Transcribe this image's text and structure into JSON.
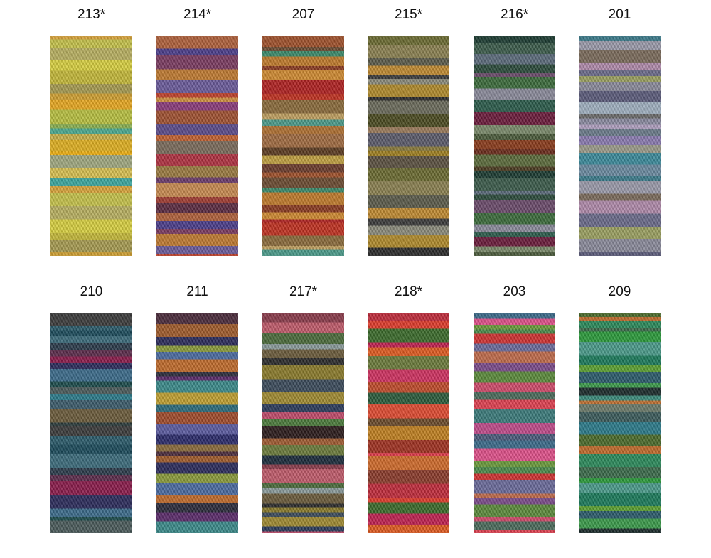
{
  "rows": [
    [
      {
        "label": "213*",
        "colors": [
          "#d9a43a",
          "#c6c24a",
          "#b8b060",
          "#d8d040",
          "#c4b838",
          "#a69a50",
          "#d0a030",
          "#e8a820",
          "#b8c040",
          "#8ab050",
          "#4aaa90",
          "#c8b048",
          "#e0b020",
          "#f0b010",
          "#a0a880",
          "#d8c050",
          "#3aa8a0"
        ]
      },
      {
        "label": "214*",
        "colors": [
          "#b0603a",
          "#4a3c8a",
          "#7a3a60",
          "#c07a30",
          "#6a5a9a",
          "#c0402a",
          "#d09040",
          "#8a3a7a",
          "#a05030",
          "#5a4a8a",
          "#c06030",
          "#7a6a5a",
          "#b03040",
          "#9a7a40",
          "#6a3a6a",
          "#c88a50",
          "#a03a30",
          "#5a2a40"
        ]
      },
      {
        "label": "207",
        "colors": [
          "#a0502a",
          "#6a4a30",
          "#3a8a6a",
          "#c07a2a",
          "#8a3a20",
          "#d08a30",
          "#b02020",
          "#c03020",
          "#8a6a3a",
          "#c0a060",
          "#4a9a8a",
          "#b07030",
          "#a06a40",
          "#5a3a20",
          "#c0a040",
          "#6a3a2a"
        ]
      },
      {
        "label": "215*",
        "colors": [
          "#6a6a30",
          "#8a8050",
          "#5a5a4a",
          "#c08a30",
          "#3a3a3a",
          "#8a8a7a",
          "#b08a2a",
          "#2a2a2a",
          "#6a6a5a",
          "#4a4a20",
          "#9a7a5a",
          "#5a5a6a",
          "#8a7a3a",
          "#a08020",
          "#5a5040"
        ]
      },
      {
        "label": "216*",
        "colors": [
          "#1a3a30",
          "#3a5a4a",
          "#5a6a7a",
          "#2a4a3a",
          "#6a4a6a",
          "#3a6a3a",
          "#8a8a9a",
          "#2a5a4a",
          "#6a1a3a",
          "#7a8a6a",
          "#4a5a3a",
          "#8a3a1a",
          "#6a2a1a",
          "#5a6a3a",
          "#4a3a20"
        ]
      },
      {
        "label": "201",
        "colors": [
          "#3a7a8a",
          "#9a9aaa",
          "#7a6a5a",
          "#b08aaa",
          "#6a6a8a",
          "#9aa060",
          "#8a8a9a",
          "#5a5a7a",
          "#a0b0c0",
          "#6a6a6a",
          "#8a8aa0",
          "#b0a0c0",
          "#6a7a8a",
          "#8a7ab0",
          "#9a9a8a",
          "#3a8a9a",
          "#6a8aa0"
        ]
      }
    ],
    [
      {
        "label": "210",
        "colors": [
          "#3a3a3a",
          "#2a5a6a",
          "#1a4a5a",
          "#3a6a7a",
          "#2a3a4a",
          "#5a2a4a",
          "#8a1a4a",
          "#2a2a5a",
          "#3a6a8a",
          "#1a4a4a",
          "#4a5a5a",
          "#2a7a8a",
          "#3a5a6a",
          "#6a5a3a",
          "#2a3a3a"
        ]
      },
      {
        "label": "211",
        "colors": [
          "#4a2a3a",
          "#a05a2a",
          "#2a2a5a",
          "#8a9a3a",
          "#4a6aa0",
          "#c06a2a",
          "#2a2a3a",
          "#5a2a6a",
          "#3a8a8a",
          "#c0a030",
          "#2a6a7a",
          "#a04a2a",
          "#5a5aa0",
          "#2a2a6a",
          "#8a6a3a"
        ]
      },
      {
        "label": "217*",
        "colors": [
          "#8a3a4a",
          "#c05a6a",
          "#4a6a3a",
          "#8a9a9a",
          "#6a5a3a",
          "#2a2a2a",
          "#8a7a2a",
          "#3a4a5a",
          "#a08a30",
          "#2a3a5a",
          "#c04a6a",
          "#4a7a3a",
          "#2a1a1a",
          "#a05a30",
          "#6a7a3a",
          "#1a2a3a"
        ]
      },
      {
        "label": "218*",
        "colors": [
          "#c02a3a",
          "#e03a2a",
          "#3a6a2a",
          "#c02050",
          "#e05a20",
          "#6a7a3a",
          "#d03060",
          "#c04a2a",
          "#2a5a3a",
          "#e04a30",
          "#6a4a2a",
          "#c08020",
          "#a03020",
          "#e03a4a",
          "#d06a2a",
          "#8a3a2a"
        ]
      },
      {
        "label": "203",
        "colors": [
          "#3a6a8a",
          "#e0508a",
          "#6a9a3a",
          "#4a8a4a",
          "#d03030",
          "#6a6a9a",
          "#c06a4a",
          "#7a4a8a",
          "#5a8a3a",
          "#d04a6a",
          "#4a6a5a",
          "#e04050",
          "#3a7a7a",
          "#c04a8a",
          "#4a5a7a"
        ]
      },
      {
        "label": "209",
        "colors": [
          "#4a6a2a",
          "#c06a2a",
          "#2a8a5a",
          "#3a6a4a",
          "#2a9a3a",
          "#4a9a8a",
          "#1a7a5a",
          "#5aa030",
          "#2a5a6a",
          "#3a9a4a",
          "#1a2a2a",
          "#3a8a7a",
          "#c07030",
          "#6a7a6a",
          "#3a5a5a",
          "#2a7a8a"
        ]
      }
    ]
  ]
}
